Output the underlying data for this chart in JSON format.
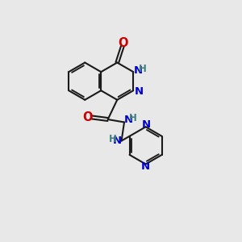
{
  "bg_color": "#e8e8e8",
  "bond_color": "#1a1a1a",
  "N_color": "#0000cc",
  "O_color": "#cc0000",
  "H_color": "#408080",
  "lw": 1.5,
  "xlim": [
    0,
    10
  ],
  "ylim": [
    0,
    10
  ],
  "bl": 1.0
}
